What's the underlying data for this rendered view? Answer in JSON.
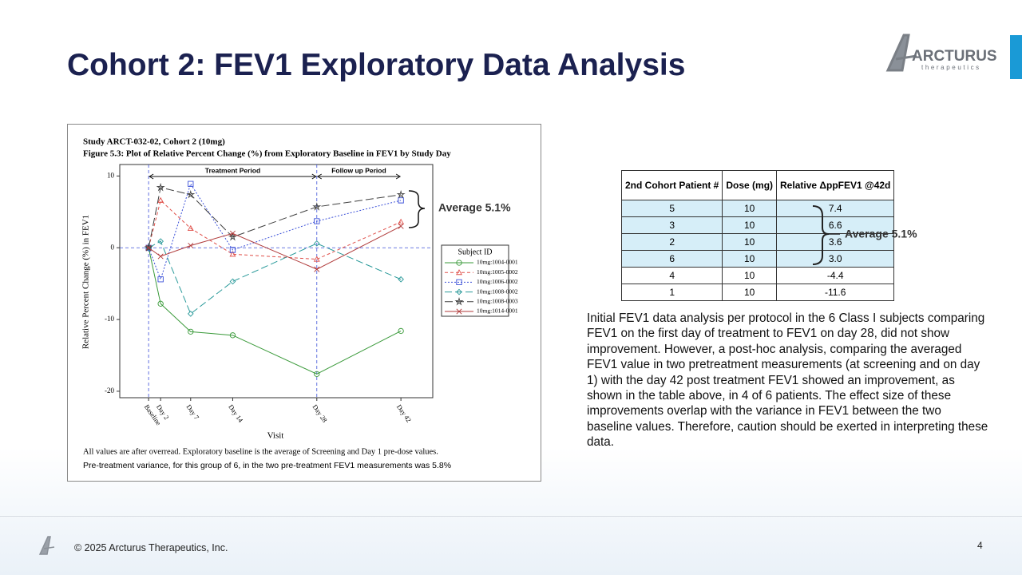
{
  "header": {
    "title": "Cohort 2: FEV1 Exploratory Data Analysis",
    "logo": "ARCTURUS",
    "logo_sub": "therapeutics"
  },
  "chart_data": {
    "type": "line",
    "title": "Study ARCT-032-02, Cohort 2 (10mg)",
    "subtitle": "Figure 5.3: Plot of Relative Percent Change (%) from Exploratory Baseline in FEV1 by Study Day",
    "x_label": "Visit",
    "y_label": "Relative Percent Change (%) in FEV1",
    "x": [
      0,
      2,
      7,
      14,
      28,
      42
    ],
    "xlim": [
      -4.8,
      47.3
    ],
    "xticks": [
      {
        "value": 0,
        "label": "Baseline"
      },
      {
        "value": 2,
        "label": "Day 2"
      },
      {
        "value": 7,
        "label": "Day 7"
      },
      {
        "value": 14,
        "label": "Day 14"
      },
      {
        "value": 28,
        "label": "Day 28"
      },
      {
        "value": 42,
        "label": "Day 42"
      }
    ],
    "ylim": [
      -20.9,
      11.6
    ],
    "yticks": [
      -20,
      -10,
      0,
      10
    ],
    "periods": [
      "Treatment Period",
      "Follow up Period"
    ],
    "legend_title": "Subject ID",
    "series": [
      {
        "name": "10mg:1004-0001",
        "color": "#3a9a3a",
        "dash": "",
        "marker": "circle",
        "values": [
          0,
          -7.8,
          -11.7,
          -12.2,
          -17.6,
          -11.6
        ]
      },
      {
        "name": "10mg:1005-0002",
        "color": "#e0504a",
        "dash": "4 3",
        "marker": "triangle",
        "values": [
          0,
          6.6,
          2.7,
          -0.9,
          -1.6,
          3.6
        ]
      },
      {
        "name": "10mg:1006-0002",
        "color": "#3a4fd8",
        "dash": "2 2",
        "marker": "square",
        "values": [
          0,
          -4.4,
          8.9,
          -0.3,
          3.7,
          6.6
        ]
      },
      {
        "name": "10mg:1008-0002",
        "color": "#2a9a9a",
        "dash": "9 4",
        "marker": "diamond",
        "values": [
          0,
          0.9,
          -9.2,
          -4.7,
          0.6,
          -4.4
        ]
      },
      {
        "name": "10mg:1008-0003",
        "color": "#404040",
        "dash": "10 4",
        "marker": "star",
        "values": [
          0,
          8.4,
          7.4,
          1.5,
          5.7,
          7.4
        ]
      },
      {
        "name": "10mg:1014-0001",
        "color": "#b03a3a",
        "dash": "",
        "marker": "x",
        "values": [
          0,
          -1.2,
          0.3,
          2.0,
          -3.0,
          3.0
        ]
      }
    ],
    "annotation": "Average 5.1%",
    "footnote": "All values are after overread. Exploratory baseline is the average of Screening and Day 1 pre-dose values.",
    "footnote2": "Pre-treatment variance, for this group of 6, in the two pre-treatment FEV1 measurements was 5.8%"
  },
  "table": {
    "header": [
      "2nd Cohort Patient #",
      "Dose (mg)",
      "Relative ΔppFEV1 @42d"
    ],
    "rows": [
      [
        "5",
        "10",
        "7.4"
      ],
      [
        "3",
        "10",
        "6.6"
      ],
      [
        "2",
        "10",
        "3.6"
      ],
      [
        "6",
        "10",
        "3.0"
      ],
      [
        "4",
        "10",
        "-4.4"
      ],
      [
        "1",
        "10",
        "-11.6"
      ]
    ],
    "annotation": "Average 5.1%"
  },
  "body": "Initial FEV1 data analysis per protocol in the 6 Class I subjects comparing FEV1 on the first day of treatment to FEV1 on day 28, did not show improvement. However, a post-hoc analysis, comparing the averaged FEV1 value in two pretreatment measurements (at screening and on day 1) with the day 42 post treatment FEV1 showed an improvement, as shown in the table above, in 4 of 6 patients. The effect size of these improvements overlap with the variance in FEV1 between the two baseline values. Therefore, caution should be exerted in interpreting these data.",
  "footer": {
    "copyright": "© 2025 Arcturus Therapeutics, Inc.",
    "page": "4"
  }
}
